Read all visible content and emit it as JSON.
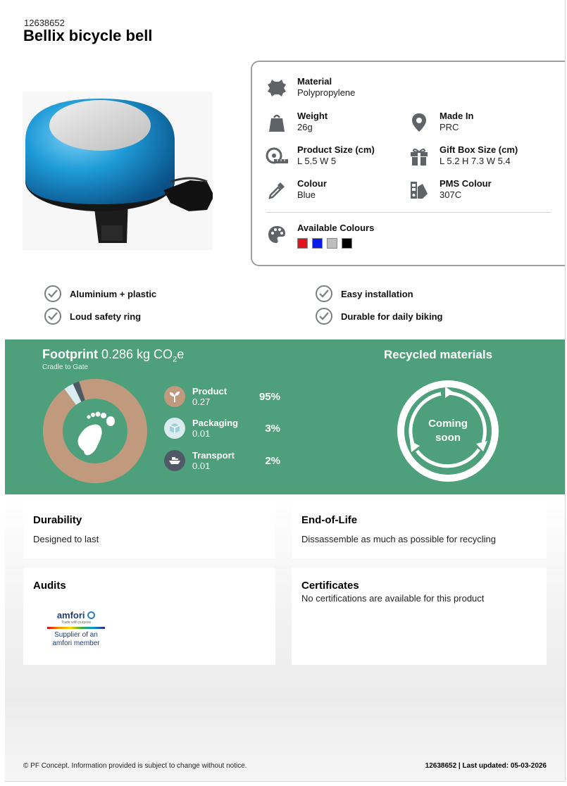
{
  "header": {
    "sku": "12638652",
    "title": "Bellix bicycle bell"
  },
  "specs": {
    "material_label": "Material",
    "material_value": "Polypropylene",
    "weight_label": "Weight",
    "weight_value": "26g",
    "made_in_label": "Made In",
    "made_in_value": "PRC",
    "product_size_label": "Product Size (cm)",
    "product_size_value": "L 5.5 W 5",
    "gift_box_label": "Gift Box Size (cm)",
    "gift_box_value": "L 5.2 H 7.3 W 5.4",
    "colour_label": "Colour",
    "colour_value": "Blue",
    "pms_label": "PMS Colour",
    "pms_value": "307C",
    "available_label": "Available Colours",
    "available_colours": [
      "#e0141b",
      "#0a1be8",
      "#bdbdbd",
      "#000000"
    ]
  },
  "features": [
    "Aluminium + plastic",
    "Loud safety ring",
    "Easy installation",
    "Durable for daily biking"
  ],
  "footprint": {
    "title_bold": "Footprint",
    "title_value": "0.286 kg CO",
    "title_sub2": "2",
    "title_end": "e",
    "subtitle": "Cradle to Gate",
    "items": [
      {
        "name": "Product",
        "value": "0.27",
        "percent": "95%",
        "fraction": 0.95,
        "color": "#c19a7e"
      },
      {
        "name": "Packaging",
        "value": "0.01",
        "percent": "3%",
        "fraction": 0.03,
        "color": "#d9ecef"
      },
      {
        "name": "Transport",
        "value": "0.01",
        "percent": "2%",
        "fraction": 0.02,
        "color": "#4f5a66"
      }
    ]
  },
  "recycled": {
    "title": "Recycled materials",
    "line1": "Coming",
    "line2": "soon"
  },
  "cards": {
    "durability_title": "Durability",
    "durability_text": "Designed to last",
    "eol_title": "End-of-Life",
    "eol_text": "Dissassemble as much as possible for recycling",
    "audits_title": "Audits",
    "amfori_brand": "amfori",
    "amfori_tagline": "Trade with purpose",
    "amfori_line1": "Supplier of an",
    "amfori_line2": "amfori member",
    "certificates_title": "Certificates",
    "certificates_text": "No certifications are available for this product"
  },
  "footer": {
    "disclaimer": "© PF Concept. Information provided is subject to change without notice.",
    "sku": "12638652",
    "updated": " | Last updated: 05-03-2026"
  },
  "colors": {
    "band": "#4da07b",
    "bell_blue": "#1e9bd7"
  }
}
